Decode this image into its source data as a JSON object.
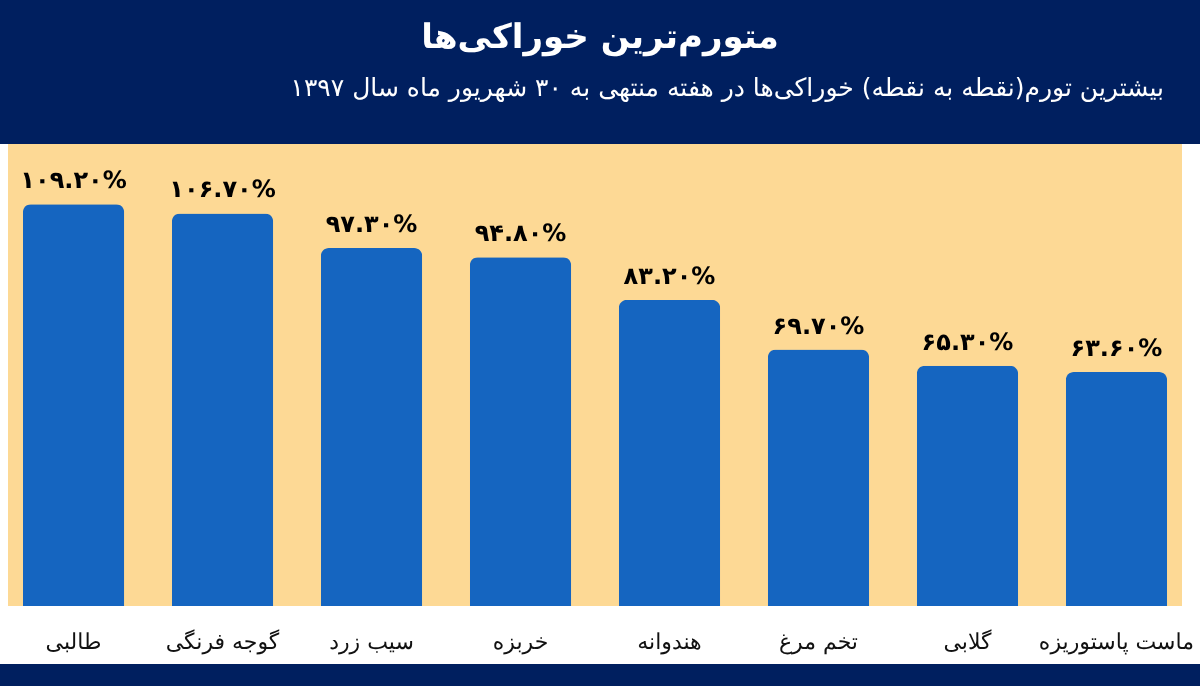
{
  "chart_data": {
    "type": "bar",
    "title": "متورم‌ترین خوراکی‌ها",
    "subtitle": "بیشترین تورم(نقطه به نقطه) خوراکی‌ها در هفته منتهی به ۳۰ شهریور ماه سال ۱۳۹۷",
    "categories": [
      "طالبی",
      "گوجه فرنگی",
      "سیب زرد",
      "خربزه",
      "هندوانه",
      "تخم مرغ",
      "گلابی",
      "ماست پاستوریزه"
    ],
    "values": [
      109.2,
      106.7,
      97.3,
      94.8,
      83.2,
      69.7,
      65.3,
      63.6
    ],
    "value_labels": [
      "۱۰۹.۲۰%",
      "۱۰۶.۷۰%",
      "۹۷.۳۰%",
      "۹۴.۸۰%",
      "۸۳.۲۰%",
      "۶۹.۷۰%",
      "۶۵.۳۰%",
      "۶۳.۶۰%"
    ],
    "color": "#1565c0",
    "tick_labels": "x"
  }
}
